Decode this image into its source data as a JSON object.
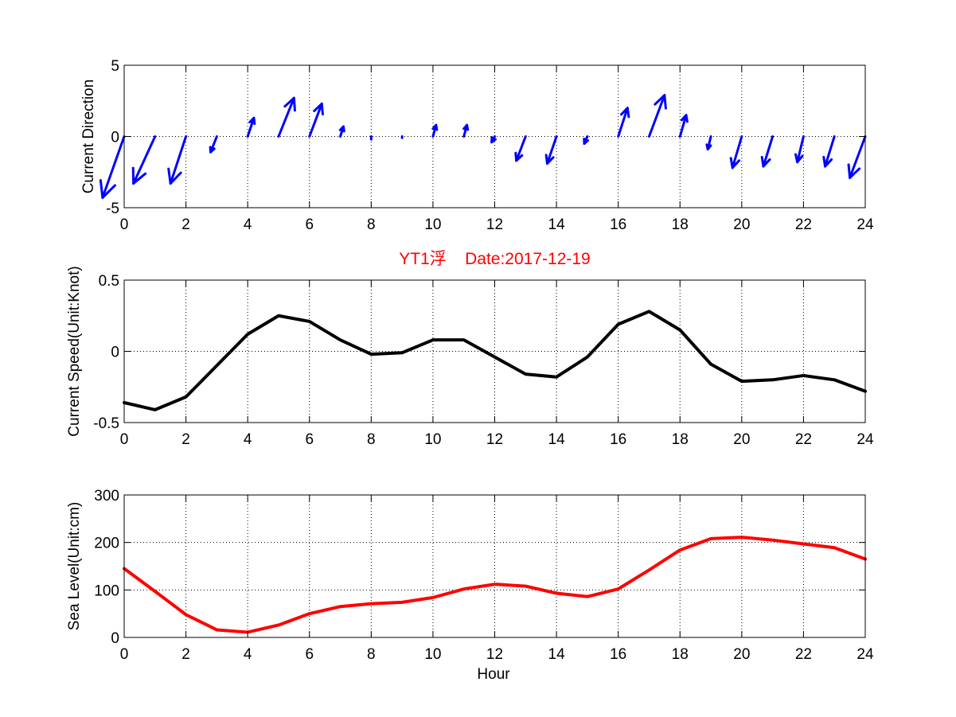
{
  "title": "YT1浮    Date:2017-12-19",
  "colors": {
    "direction": "#0000ff",
    "speed": "#000000",
    "sea_level": "#ff0000",
    "title": "#ff0000"
  },
  "chart_data": [
    {
      "id": "direction",
      "type": "quiver",
      "ylabel": "Current Direction",
      "xlabel": "",
      "xlim": [
        0,
        24
      ],
      "ylim": [
        -5,
        5
      ],
      "xticks": [
        0,
        2,
        4,
        6,
        8,
        10,
        12,
        14,
        16,
        18,
        20,
        22,
        24
      ],
      "yticks": [
        -5,
        0,
        5
      ],
      "grid": true,
      "color": "#0000ff",
      "x": [
        0,
        1,
        2,
        3,
        4,
        5,
        6,
        7,
        8,
        9,
        10,
        11,
        12,
        13,
        14,
        15,
        16,
        17,
        18,
        19,
        20,
        21,
        22,
        23,
        24
      ],
      "dx": [
        -0.7,
        -0.7,
        -0.5,
        -0.2,
        0.2,
        0.5,
        0.4,
        0.1,
        0.0,
        0.0,
        0.1,
        0.1,
        -0.1,
        -0.3,
        -0.3,
        -0.1,
        0.3,
        0.5,
        0.2,
        -0.1,
        -0.3,
        -0.3,
        -0.2,
        -0.3,
        -0.5
      ],
      "dy": [
        -4.3,
        -3.3,
        -3.3,
        -1.1,
        1.3,
        2.7,
        2.3,
        0.7,
        -0.2,
        -0.1,
        0.8,
        0.8,
        -0.4,
        -1.7,
        -1.9,
        -0.5,
        2.0,
        2.9,
        1.5,
        -0.9,
        -2.2,
        -2.1,
        -1.8,
        -2.1,
        -2.9
      ]
    },
    {
      "id": "speed",
      "type": "line",
      "ylabel": "Current Speed(Unit:Knot)",
      "xlabel": "",
      "xlim": [
        0,
        24
      ],
      "ylim": [
        -0.5,
        0.5
      ],
      "xticks": [
        0,
        2,
        4,
        6,
        8,
        10,
        12,
        14,
        16,
        18,
        20,
        22,
        24
      ],
      "yticks": [
        -0.5,
        0,
        0.5
      ],
      "grid": true,
      "series": [
        {
          "color": "#000000",
          "x": [
            0,
            1,
            2,
            3,
            4,
            5,
            6,
            7,
            8,
            9,
            10,
            11,
            12,
            13,
            14,
            15,
            16,
            17,
            18,
            19,
            20,
            21,
            22,
            23,
            24
          ],
          "values": [
            -0.36,
            -0.41,
            -0.32,
            -0.1,
            0.12,
            0.25,
            0.21,
            0.08,
            -0.02,
            -0.01,
            0.08,
            0.08,
            -0.04,
            -0.16,
            -0.18,
            -0.04,
            0.19,
            0.28,
            0.15,
            -0.09,
            -0.21,
            -0.2,
            -0.17,
            -0.2,
            -0.28
          ]
        }
      ]
    },
    {
      "id": "sea_level",
      "type": "line",
      "ylabel": "Sea Level(Unit:cm)",
      "xlabel": "Hour",
      "xlim": [
        0,
        24
      ],
      "ylim": [
        0,
        300
      ],
      "xticks": [
        0,
        2,
        4,
        6,
        8,
        10,
        12,
        14,
        16,
        18,
        20,
        22,
        24
      ],
      "yticks": [
        0,
        100,
        200,
        300
      ],
      "grid": true,
      "series": [
        {
          "color": "#ff0000",
          "x": [
            0,
            1,
            2,
            3,
            4,
            5,
            6,
            7,
            8,
            9,
            10,
            11,
            12,
            13,
            14,
            15,
            16,
            17,
            18,
            19,
            20,
            21,
            22,
            23,
            24
          ],
          "values": [
            145,
            97,
            48,
            16,
            11,
            26,
            50,
            65,
            71,
            74,
            84,
            102,
            112,
            108,
            93,
            86,
            102,
            142,
            184,
            208,
            211,
            205,
            197,
            189,
            165
          ]
        }
      ]
    }
  ]
}
